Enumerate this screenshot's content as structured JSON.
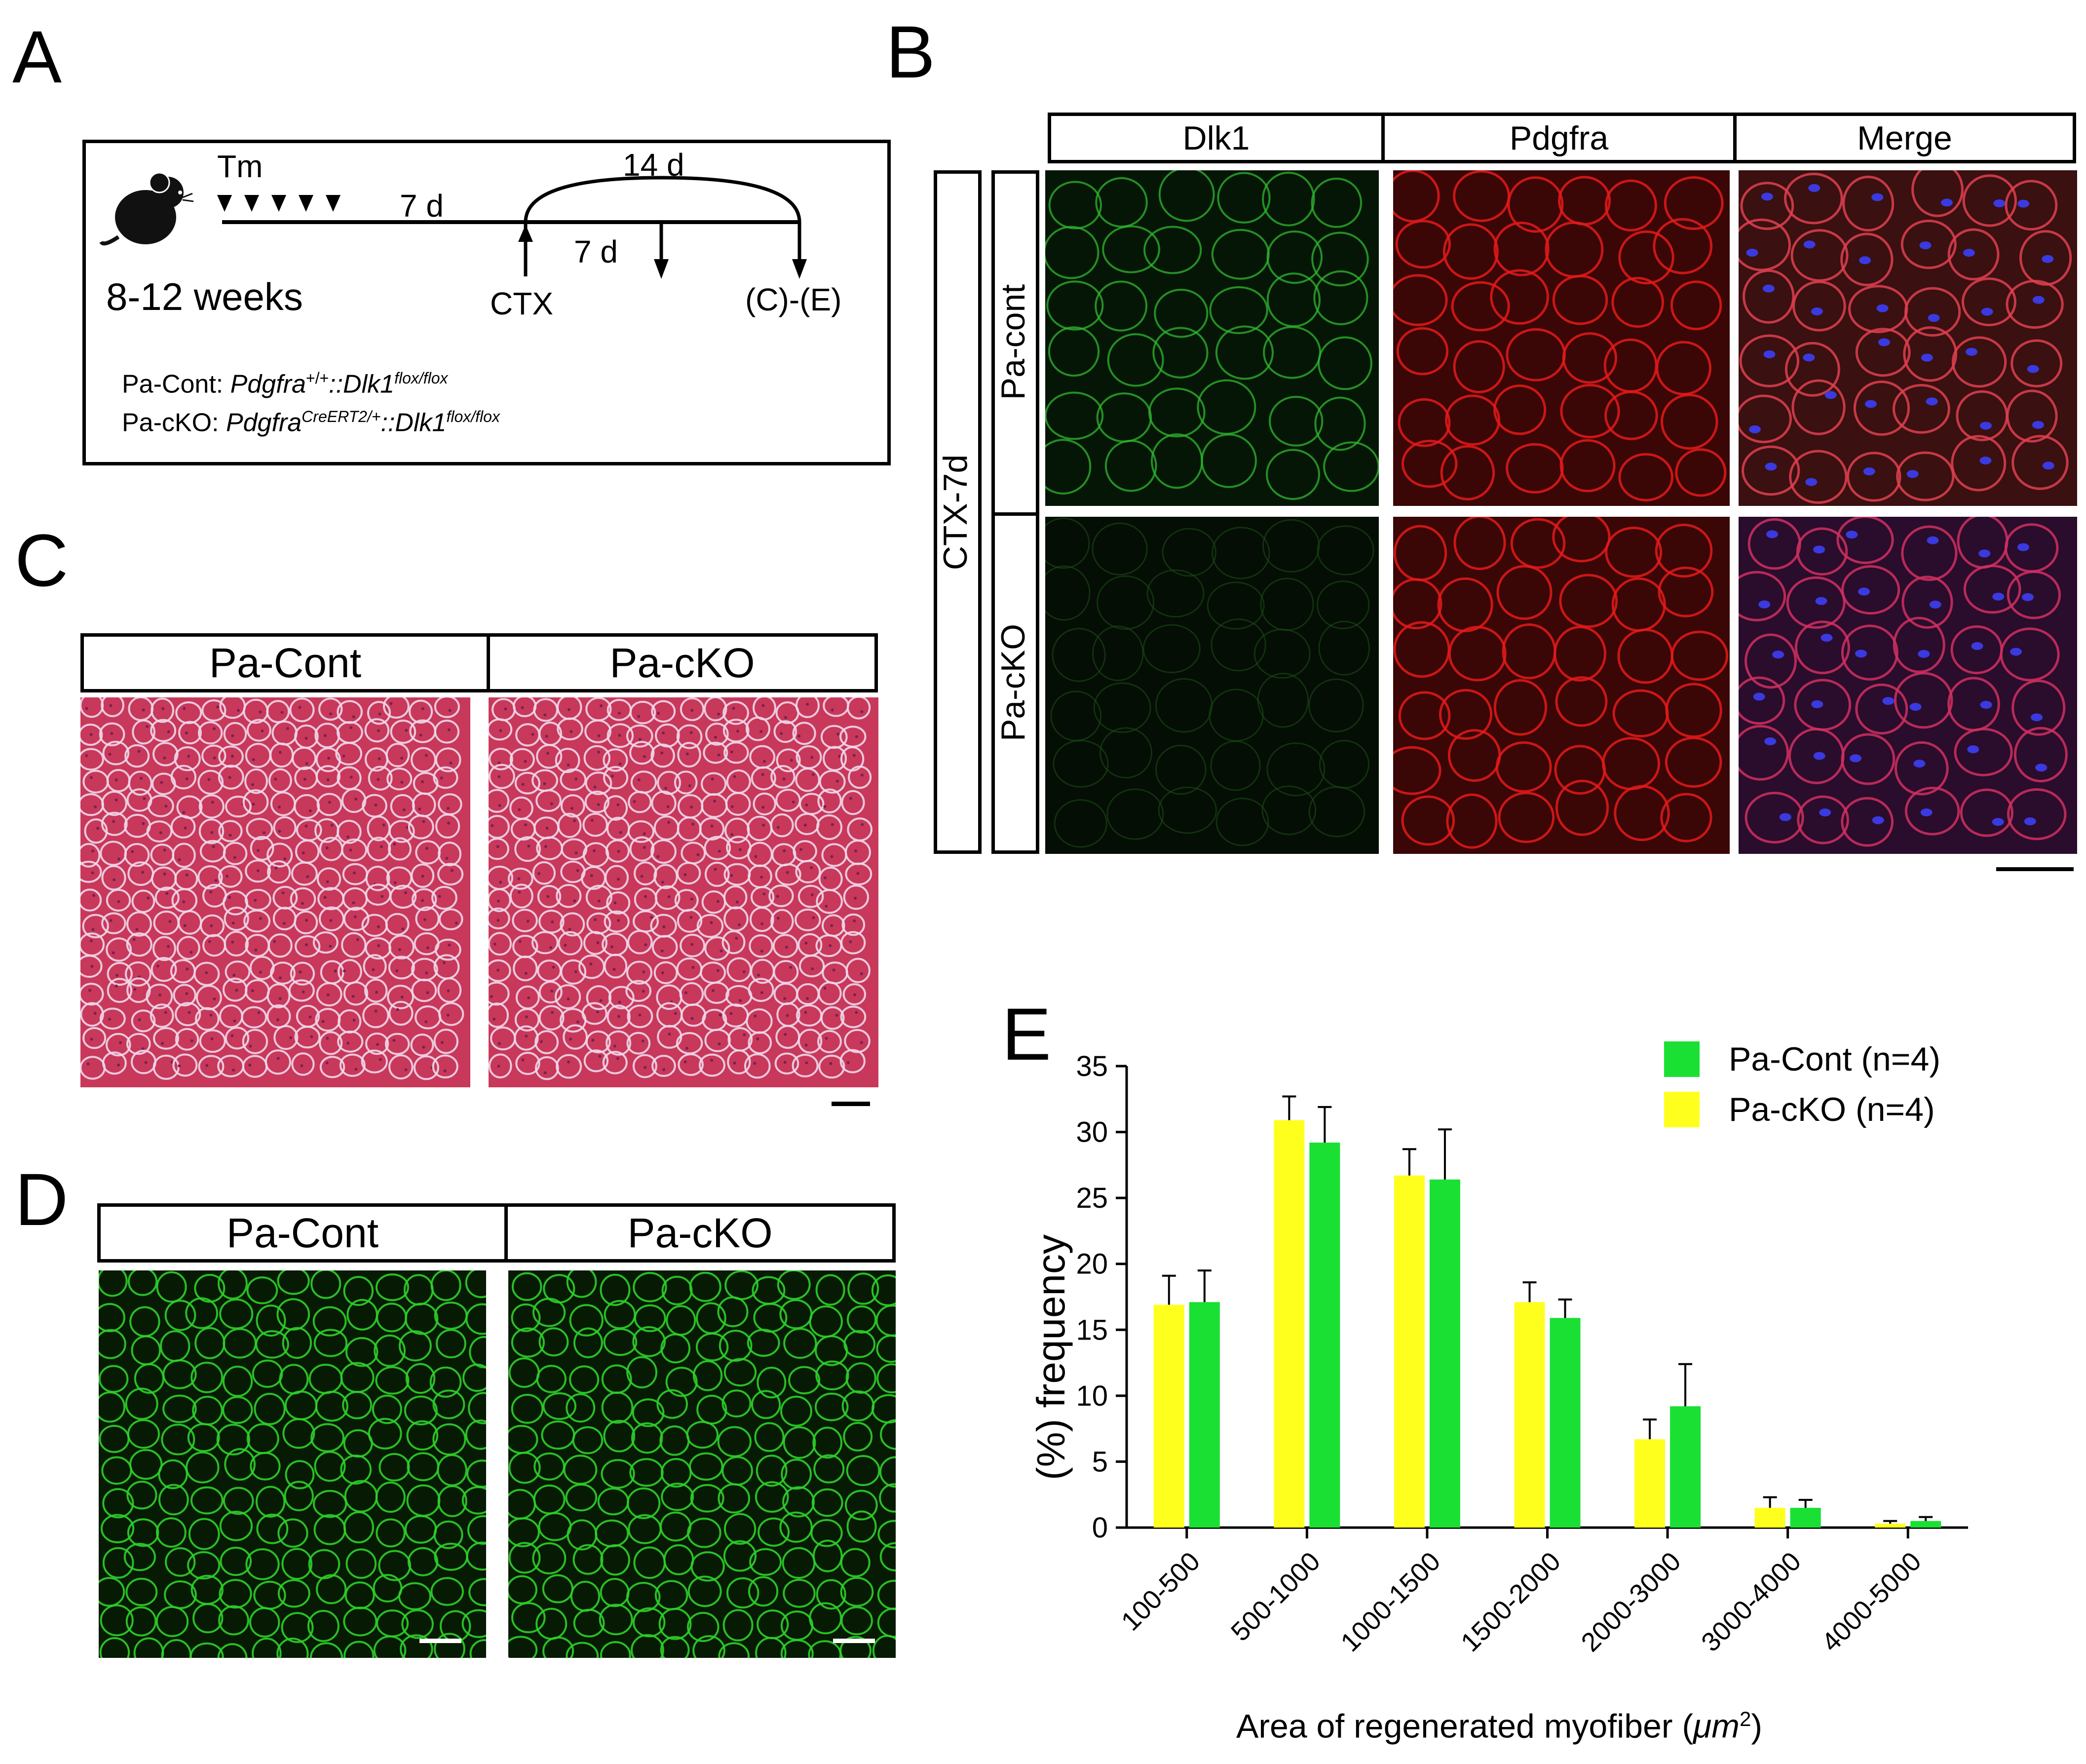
{
  "panels": {
    "A": "A",
    "B": "B",
    "C": "C",
    "D": "D",
    "E": "E"
  },
  "panelA": {
    "tm": "Tm",
    "d7a": "7 d",
    "d14": "14 d",
    "d7b": "7 d",
    "age": "8-12 weeks",
    "ctx": "CTX",
    "ce": "(C)-(E)",
    "cont_prefix": "Pa-Cont: ",
    "cont_gene1": "Pdgfra",
    "cont_sup1": "+/+",
    "cont_mid": "::Dlk1",
    "cont_sup2": "flox/flox",
    "cko_prefix": "Pa-cKO: ",
    "cko_gene1": "Pdgfra",
    "cko_sup1": "CreERT2/+",
    "cko_mid": "::Dlk1",
    "cko_sup2": "flox/flox"
  },
  "panelB": {
    "cols": [
      "Dlk1",
      "Pdgfra",
      "Merge"
    ],
    "group": "CTX-7d",
    "rows": [
      "Pa-cont",
      "Pa-cKO"
    ]
  },
  "panelC": {
    "cols": [
      "Pa-Cont",
      "Pa-cKO"
    ]
  },
  "panelD": {
    "cols": [
      "Pa-Cont",
      "Pa-cKO"
    ]
  },
  "colors": {
    "cont": "#19e033",
    "cko": "#ffff1e",
    "he": "#d63f63",
    "gfp": "#0a1a04"
  },
  "chart_data": {
    "type": "bar",
    "categories": [
      "100-500",
      "500-1000",
      "1000-1500",
      "1500-2000",
      "2000-3000",
      "3000-4000",
      "4000-5000"
    ],
    "series": [
      {
        "name": "Pa-cKO (n=4)",
        "values": [
          16.9,
          30.9,
          26.7,
          17.1,
          6.7,
          1.5,
          0.3
        ],
        "errors": [
          2.2,
          1.8,
          2.0,
          1.5,
          1.5,
          0.8,
          0.2
        ]
      },
      {
        "name": "Pa-Cont (n=4)",
        "values": [
          17.1,
          29.2,
          26.4,
          15.9,
          9.2,
          1.5,
          0.5
        ],
        "errors": [
          2.4,
          2.7,
          3.8,
          1.4,
          3.2,
          0.6,
          0.3
        ]
      }
    ],
    "legend": [
      "Pa-Cont (n=4)",
      "Pa-cKO (n=4)"
    ],
    "ylabel": "(%)  frequency",
    "xlabel": "Area of regenerated myofiber (μm²)",
    "xlabel_main": "Area of regenerated myofiber (",
    "xlabel_unit": "μm",
    "xlabel_sup": "2",
    "xlabel_end": ")",
    "ylim": [
      0,
      35
    ],
    "yticks": [
      "0",
      "5",
      "10",
      "15",
      "20",
      "25",
      "30",
      "35"
    ],
    "legend_position": "top-right",
    "grid": false
  }
}
